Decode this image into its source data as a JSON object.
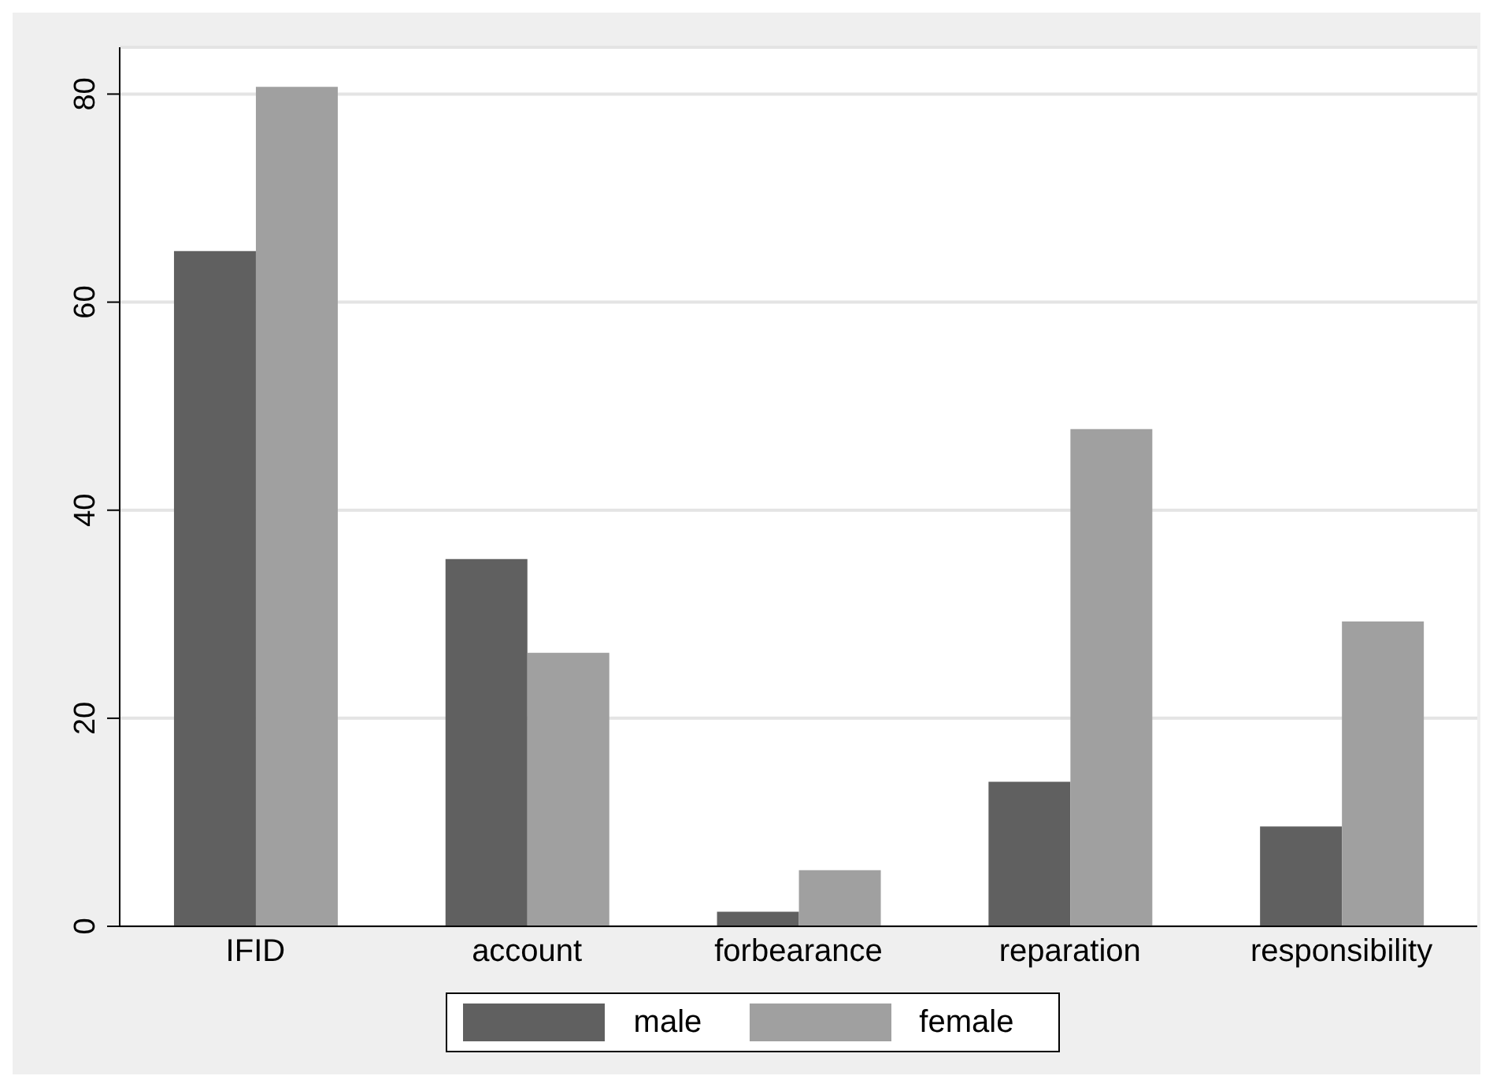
{
  "chart_data": {
    "type": "bar",
    "categories": [
      "IFID",
      "account",
      "forbearance",
      "reparation",
      "responsibility"
    ],
    "series": [
      {
        "name": "male",
        "color": "#606060",
        "values": [
          64.9,
          35.3,
          1.4,
          13.9,
          9.6
        ]
      },
      {
        "name": "female",
        "color": "#a0a0a0",
        "values": [
          80.7,
          26.3,
          5.4,
          47.8,
          29.3
        ]
      }
    ],
    "ylim": [
      0,
      84.5
    ],
    "yticks": [
      0,
      20,
      40,
      60,
      80
    ],
    "grid": "y",
    "legend": "bottom"
  }
}
